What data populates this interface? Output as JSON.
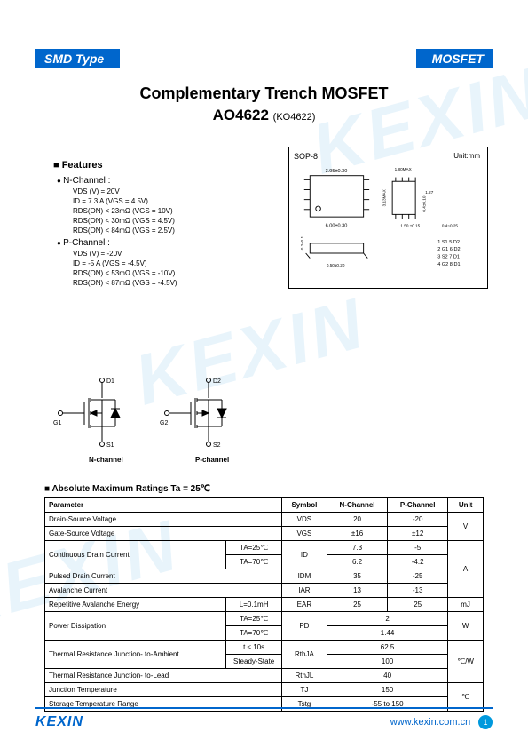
{
  "header": {
    "left": "SMD Type",
    "right": "MOSFET"
  },
  "title": {
    "main": "Complementary Trench MOSFET",
    "part": "AO4622",
    "alt": "(KO4622)"
  },
  "features": {
    "heading": "Features",
    "n_channel": {
      "label": "N-Channel :",
      "lines": [
        "VDS (V) = 20V",
        "ID = 7.3 A (VGS = 4.5V)",
        "RDS(ON) < 23mΩ (VGS = 10V)",
        "RDS(ON) < 30mΩ (VGS = 4.5V)",
        "RDS(ON) < 84mΩ (VGS = 2.5V)"
      ]
    },
    "p_channel": {
      "label": "P-Channel :",
      "lines": [
        "VDS (V) = -20V",
        "ID = -5 A (VGS = -4.5V)",
        "RDS(ON) < 53mΩ (VGS = -10V)",
        "RDS(ON) < 87mΩ (VGS = -4.5V)"
      ]
    }
  },
  "package": {
    "label": "SOP-8",
    "unit": "Unit:mm",
    "dims": {
      "top_width": "3.95±0.30",
      "bottom_width": "6.00±0.30",
      "height": "1.80MAX",
      "body_h": "3.13MAX",
      "pitch": "1.27",
      "pad_w": "0.4±0.10",
      "pad_l": "0.4~0.25",
      "lead_space": "1.50 ±0.15",
      "lead_h": "0.50±0.20",
      "stand": "0.2±0.1"
    },
    "pinout": [
      "1 S1   5 D2",
      "2 G1   6 D2",
      "3 S2   7 D1",
      "4 G2   8 D1"
    ]
  },
  "circuit": {
    "n_label": "N-channel",
    "p_label": "P-channel",
    "pins": {
      "d1": "D1",
      "g1": "G1",
      "s1": "S1",
      "d2": "D2",
      "g2": "G2",
      "s2": "S2"
    }
  },
  "ratings": {
    "heading": "Absolute Maximum Ratings Ta = 25℃",
    "headers": {
      "param": "Parameter",
      "symbol": "Symbol",
      "nch": "N-Channel",
      "pch": "P-Channel",
      "unit": "Unit"
    },
    "rows": [
      {
        "param": "Drain-Source Voltage",
        "cond": "",
        "sym": "VDS",
        "n": "20",
        "p": "-20",
        "unit": "V",
        "merge_unit": 2
      },
      {
        "param": "Gate-Source Voltage",
        "cond": "",
        "sym": "VGS",
        "n": "±16",
        "p": "±12",
        "unit": ""
      },
      {
        "param": "Continuous Drain Current",
        "cond": "TA=25℃",
        "sym": "ID",
        "n": "7.3",
        "p": "-5",
        "unit": "A",
        "merge_param": 2,
        "merge_sym": 2,
        "merge_unit": 4
      },
      {
        "param": "",
        "cond": "TA=70℃",
        "sym": "",
        "n": "6.2",
        "p": "-4.2",
        "unit": ""
      },
      {
        "param": "Pulsed Drain Current",
        "cond": "",
        "sym": "IDM",
        "n": "35",
        "p": "-25",
        "unit": ""
      },
      {
        "param": "Avalanche Current",
        "cond": "",
        "sym": "IAR",
        "n": "13",
        "p": "-13",
        "unit": ""
      },
      {
        "param": "Repetitive Avalanche Energy",
        "cond": "L=0.1mH",
        "sym": "EAR",
        "n": "25",
        "p": "25",
        "unit": "mJ"
      },
      {
        "param": "Power Dissipation",
        "cond": "TA=25℃",
        "sym": "PD",
        "n": "2",
        "p": "",
        "unit": "W",
        "merge_param": 2,
        "merge_sym": 2,
        "merge_unit": 2,
        "span_np": true
      },
      {
        "param": "",
        "cond": "TA=70℃",
        "sym": "",
        "n": "1.44",
        "p": "",
        "unit": "",
        "span_np": true
      },
      {
        "param": "Thermal Resistance Junction- to-Ambient",
        "cond": "t ≤ 10s",
        "sym": "RthJA",
        "n": "62.5",
        "p": "",
        "unit": "℃/W",
        "merge_param": 2,
        "merge_sym": 2,
        "merge_unit": 3,
        "span_np": true
      },
      {
        "param": "",
        "cond": "Steady-State",
        "sym": "",
        "n": "100",
        "p": "",
        "unit": "",
        "span_np": true
      },
      {
        "param": "Thermal Resistance Junction- to-Lead",
        "cond": "",
        "sym": "RthJL",
        "n": "40",
        "p": "",
        "unit": "",
        "span_np": true
      },
      {
        "param": "Junction Temperature",
        "cond": "",
        "sym": "TJ",
        "n": "150",
        "p": "",
        "unit": "℃",
        "merge_unit": 2,
        "span_np": true
      },
      {
        "param": "Storage Temperature Range",
        "cond": "",
        "sym": "Tstg",
        "n": "-55 to 150",
        "p": "",
        "unit": "",
        "span_np": true
      }
    ]
  },
  "footer": {
    "logo": "KEXIN",
    "url": "www.kexin.com.cn",
    "page": "1"
  },
  "colors": {
    "brand": "#0066cc",
    "badge": "#0099dd",
    "watermark": "rgba(100,180,230,0.15)"
  }
}
